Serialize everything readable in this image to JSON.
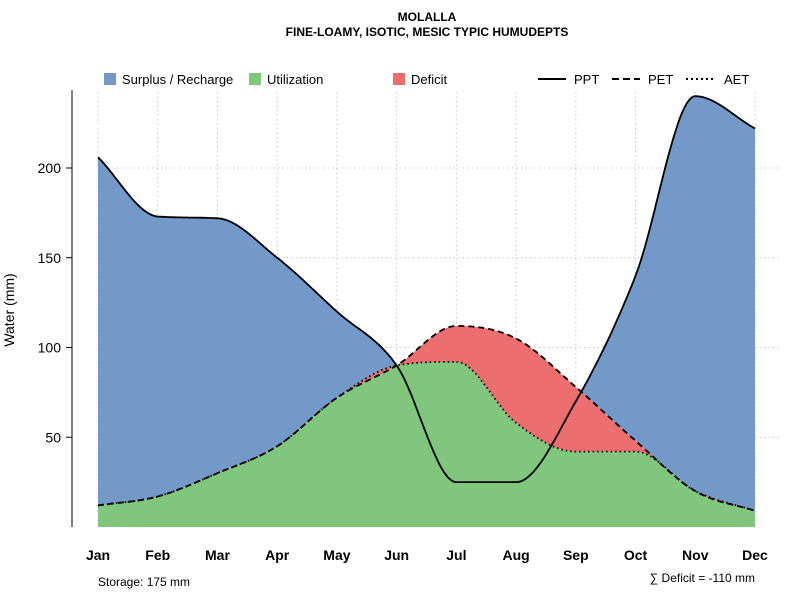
{
  "chart_data": {
    "type": "area",
    "title": "MOLALLA",
    "subtitle": "FINE-LOAMY, ISOTIC, MESIC TYPIC HUMUDEPTS",
    "xlabel": "",
    "ylabel": "Water (mm)",
    "categories": [
      "Jan",
      "Feb",
      "Mar",
      "Apr",
      "May",
      "Jun",
      "Jul",
      "Aug",
      "Sep",
      "Oct",
      "Nov",
      "Dec"
    ],
    "yticks": [
      "50",
      "100",
      "150",
      "200"
    ],
    "ylim": [
      0,
      245
    ],
    "grid": true,
    "series": [
      {
        "name": "PPT",
        "style": "solid",
        "values": [
          206,
          173,
          172,
          150,
          120,
          90,
          25,
          25,
          70,
          140,
          240,
          222
        ]
      },
      {
        "name": "PET",
        "style": "dashed",
        "values": [
          12,
          17,
          30,
          45,
          72,
          90,
          112,
          105,
          78,
          48,
          20,
          9
        ]
      },
      {
        "name": "AET",
        "style": "dotted",
        "values": [
          12,
          17,
          30,
          45,
          72,
          90,
          92,
          58,
          42,
          42,
          20,
          9
        ]
      }
    ],
    "legend": {
      "areas": [
        {
          "label": "Surplus / Recharge",
          "color": "#7399c9"
        },
        {
          "label": "Utilization",
          "color": "#80c67d"
        },
        {
          "label": "Deficit",
          "color": "#ec6e6e"
        }
      ],
      "lines": [
        {
          "label": "PPT",
          "style": "solid"
        },
        {
          "label": "PET",
          "style": "dashed"
        },
        {
          "label": "AET",
          "style": "dotted"
        }
      ],
      "position": "top"
    },
    "annotations": {
      "storage": "Storage: 175 mm",
      "deficit": "∑ Deficit = -110 mm"
    }
  }
}
